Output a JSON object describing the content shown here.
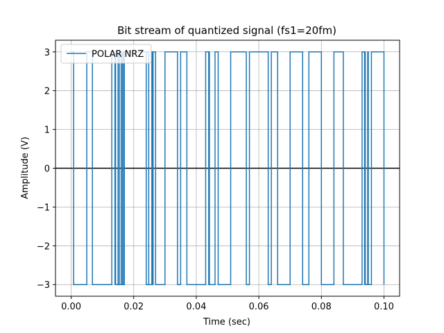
{
  "chart_data": {
    "type": "line",
    "title": "Bit stream of quantized signal (fs1=20fm)",
    "xlabel": "Time (sec)",
    "ylabel": "Amplitude (V)",
    "xlim": [
      -0.005,
      0.105
    ],
    "ylim": [
      -3.3,
      3.3
    ],
    "x_ticks": [
      0.0,
      0.02,
      0.04,
      0.06,
      0.08,
      0.1
    ],
    "x_tick_labels": [
      "0.00",
      "0.02",
      "0.04",
      "0.06",
      "0.08",
      "0.10"
    ],
    "y_ticks": [
      -3,
      -2,
      -1,
      0,
      1,
      2,
      3
    ],
    "y_tick_labels": [
      "−3",
      "−2",
      "−1",
      "0",
      "1",
      "2",
      "3"
    ],
    "grid": true,
    "legend_position": "top-left",
    "zero_line": {
      "y": 0,
      "color": "#000000"
    },
    "series": [
      {
        "name": "POLAR NRZ",
        "color": "#1f77b4",
        "drawstyle": "steps",
        "x": [
          0.0,
          0.0008,
          0.0048,
          0.005,
          0.0066,
          0.0068,
          0.0128,
          0.013,
          0.014,
          0.0142,
          0.0168,
          0.017,
          0.0238,
          0.024,
          0.0258,
          0.026,
          0.0268,
          0.027,
          0.0298,
          0.03,
          0.0338,
          0.034,
          0.0348,
          0.035,
          0.0368,
          0.037,
          0.0428,
          0.043,
          0.0438,
          0.044,
          0.0458,
          0.046,
          0.0468,
          0.047,
          0.0508,
          0.051,
          0.0558,
          0.056,
          0.0568,
          0.057,
          0.0628,
          0.063,
          0.0638,
          0.064,
          0.0658,
          0.066,
          0.0698,
          0.07,
          0.0738,
          0.074,
          0.0758,
          0.076,
          0.0798,
          0.08,
          0.0838,
          0.084,
          0.0868,
          0.087,
          0.0928,
          0.093,
          0.0938,
          0.094,
          0.0958,
          0.096,
          0.0978,
          0.1
        ],
        "y": [
          3,
          -3,
          -3,
          3,
          3,
          -3,
          -3,
          3,
          3,
          -3,
          -3,
          3,
          3,
          -3,
          -3,
          3,
          3,
          -3,
          -3,
          3,
          3,
          -3,
          -3,
          3,
          3,
          -3,
          -3,
          3,
          3,
          -3,
          -3,
          3,
          3,
          -3,
          -3,
          3,
          3,
          -3,
          -3,
          3,
          3,
          -3,
          -3,
          3,
          3,
          -3,
          -3,
          3,
          3,
          -3,
          -3,
          3,
          3,
          -3,
          -3,
          3,
          3,
          -3,
          -3,
          3,
          3,
          -3,
          -3,
          3,
          3,
          -3
        ]
      }
    ],
    "extra_pulses_top": [
      [
        0.014,
        0.015
      ],
      [
        0.0154,
        0.016
      ],
      [
        0.0164,
        0.0168
      ],
      [
        0.024,
        0.0248
      ],
      [
        0.0258,
        0.0262
      ],
      [
        0.044,
        0.0442
      ],
      [
        0.0938,
        0.094
      ],
      [
        0.0948,
        0.095
      ]
    ]
  }
}
